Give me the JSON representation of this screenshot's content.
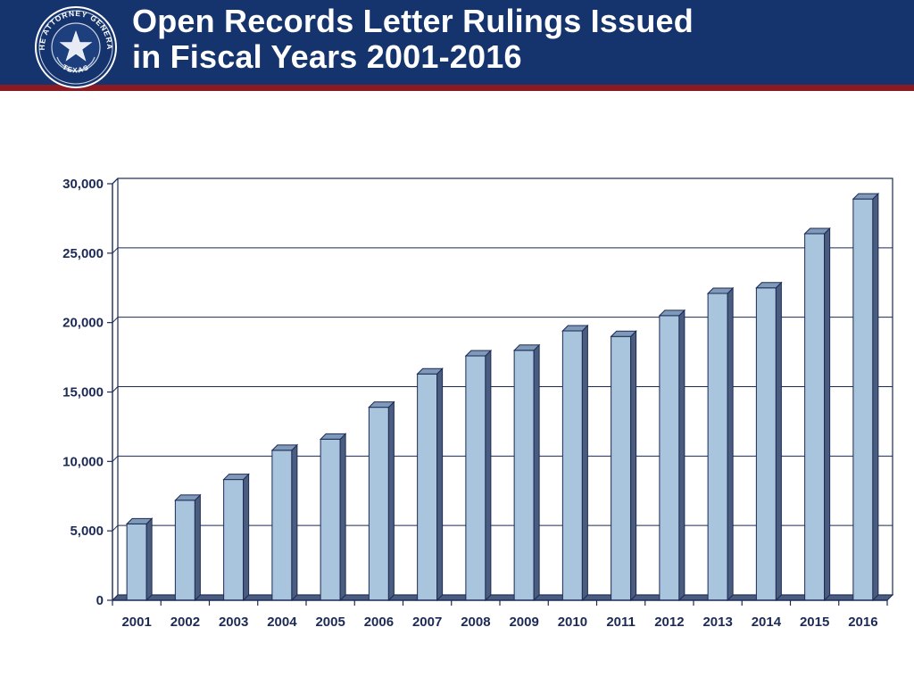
{
  "header": {
    "title_line1": "Open Records Letter Rulings Issued",
    "title_line2": "in Fiscal Years 2001-2016",
    "seal_ring_text": "THE ATTORNEY GENERAL",
    "seal_bottom_text": "TEXAS",
    "background_color": "#15346d",
    "rule_color": "#8c1a22"
  },
  "chart_data": {
    "type": "bar",
    "title": "",
    "xlabel": "",
    "ylabel": "",
    "categories": [
      "2001",
      "2002",
      "2003",
      "2004",
      "2005",
      "2006",
      "2007",
      "2008",
      "2009",
      "2010",
      "2011",
      "2012",
      "2013",
      "2014",
      "2015",
      "2016"
    ],
    "values": [
      5500,
      7200,
      8700,
      10800,
      11600,
      13900,
      16300,
      17600,
      18000,
      19400,
      19000,
      20500,
      22100,
      22500,
      26400,
      28900
    ],
    "ylim": [
      0,
      30000
    ],
    "y_ticks": [
      0,
      5000,
      10000,
      15000,
      20000,
      25000,
      30000
    ],
    "y_tick_labels": [
      "0",
      "5,000",
      "10,000",
      "15,000",
      "20,000",
      "25,000",
      "30,000"
    ],
    "grid": true,
    "bar_style": "3d",
    "colors": {
      "bar_front": "#a9c5de",
      "bar_top": "#7f99b8",
      "bar_side": "#4a5d7e",
      "axis": "#1c2a55",
      "gridline": "#1c2a55",
      "label": "#1c2a55"
    }
  }
}
